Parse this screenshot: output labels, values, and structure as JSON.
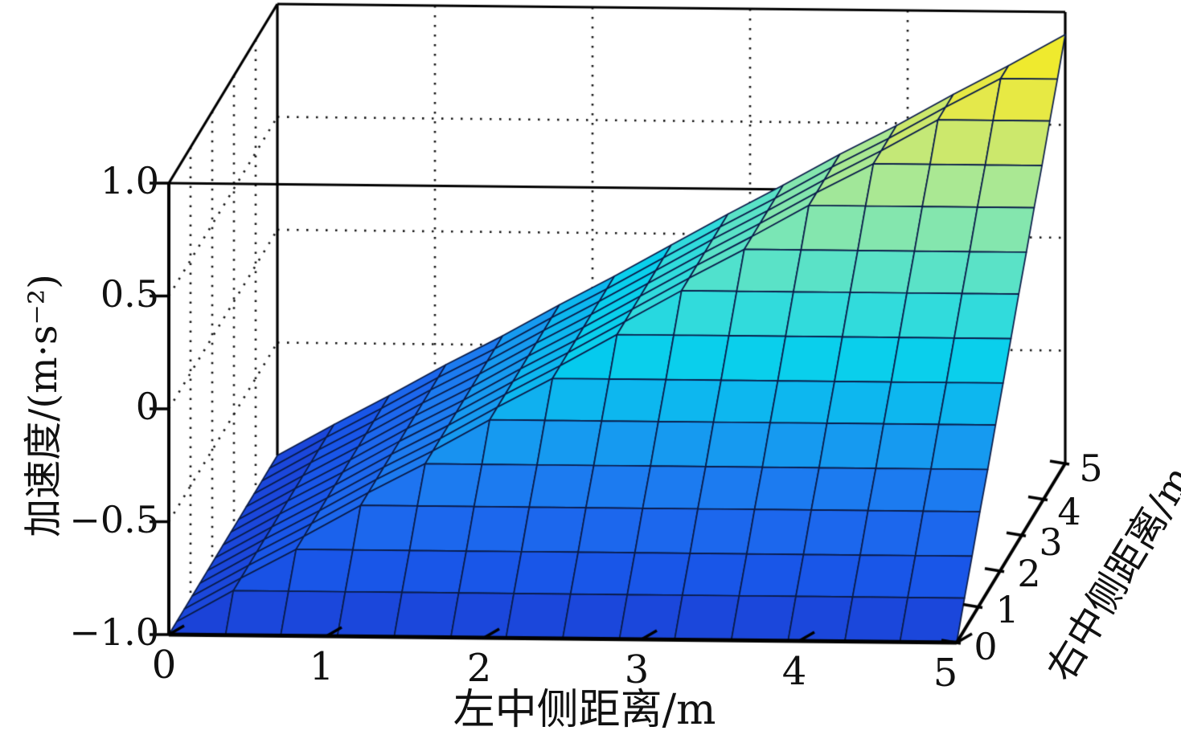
{
  "figure": {
    "background": "#ffffff",
    "description": "3D surface plot of acceleration versus left-middle and right-middle side distances"
  },
  "chart_data": {
    "type": "surface3d",
    "xlabel": "左中侧距离/m",
    "ylabel": "右中侧距离/m",
    "zlabel": "加速度/(m·s⁻²)",
    "xlim": [
      0,
      5
    ],
    "ylim": [
      0,
      5
    ],
    "zlim": [
      -1,
      1
    ],
    "x_ticks": [
      "0",
      "1",
      "2",
      "3",
      "4",
      "5"
    ],
    "y_ticks": [
      "0",
      "1",
      "2",
      "3",
      "4",
      "5"
    ],
    "z_ticks": [
      "1.0",
      "0.5",
      "0",
      "−0.5",
      "−1.0"
    ],
    "x_tick_values": [
      0,
      1,
      2,
      3,
      4,
      5
    ],
    "y_tick_values": [
      0,
      1,
      2,
      3,
      4,
      5
    ],
    "z_tick_values": [
      1.0,
      0.5,
      0,
      -0.5,
      -1.0
    ],
    "grid": true,
    "grid_color": "#161616",
    "box_color": "#000000",
    "mesh_line_color": "#0a1c4a",
    "x_grid": [
      0,
      0.36,
      0.71,
      1.07,
      1.43,
      1.79,
      2.14,
      2.5,
      2.86,
      3.21,
      3.57,
      3.93,
      4.29,
      4.64,
      5
    ],
    "y_grid": [
      0,
      0.36,
      0.71,
      1.07,
      1.43,
      1.79,
      2.14,
      2.5,
      2.86,
      3.21,
      3.57,
      3.93,
      4.29,
      4.64,
      5
    ],
    "z_matrix": [
      [
        -1,
        -1,
        -1,
        -1,
        -1,
        -1,
        -1,
        -1,
        -1,
        -1,
        -1,
        -1,
        -1,
        -1,
        -1
      ],
      [
        -1,
        -0.86,
        -0.86,
        -0.86,
        -0.86,
        -0.86,
        -0.86,
        -0.86,
        -0.86,
        -0.86,
        -0.86,
        -0.86,
        -0.86,
        -0.86,
        -0.86
      ],
      [
        -1,
        -0.86,
        -0.73,
        -0.73,
        -0.73,
        -0.73,
        -0.73,
        -0.73,
        -0.73,
        -0.73,
        -0.73,
        -0.73,
        -0.73,
        -0.73,
        -0.73
      ],
      [
        -1,
        -0.86,
        -0.73,
        -0.59,
        -0.59,
        -0.59,
        -0.59,
        -0.59,
        -0.59,
        -0.59,
        -0.59,
        -0.59,
        -0.59,
        -0.59,
        -0.59
      ],
      [
        -1,
        -0.86,
        -0.73,
        -0.59,
        -0.46,
        -0.46,
        -0.46,
        -0.46,
        -0.46,
        -0.46,
        -0.46,
        -0.46,
        -0.46,
        -0.46,
        -0.46
      ],
      [
        -1,
        -0.86,
        -0.73,
        -0.59,
        -0.46,
        -0.32,
        -0.32,
        -0.32,
        -0.32,
        -0.32,
        -0.32,
        -0.32,
        -0.32,
        -0.32,
        -0.32
      ],
      [
        -1,
        -0.86,
        -0.73,
        -0.59,
        -0.46,
        -0.32,
        -0.19,
        -0.19,
        -0.19,
        -0.19,
        -0.19,
        -0.19,
        -0.19,
        -0.19,
        -0.19
      ],
      [
        -1,
        -0.86,
        -0.73,
        -0.59,
        -0.46,
        -0.32,
        -0.19,
        -0.05,
        -0.05,
        -0.05,
        -0.05,
        -0.05,
        -0.05,
        -0.05,
        -0.05
      ],
      [
        -1,
        -0.86,
        -0.73,
        -0.59,
        -0.46,
        -0.32,
        -0.19,
        -0.05,
        0.09,
        0.09,
        0.09,
        0.09,
        0.09,
        0.09,
        0.09
      ],
      [
        -1,
        -0.86,
        -0.73,
        -0.59,
        -0.46,
        -0.32,
        -0.19,
        -0.05,
        0.09,
        0.22,
        0.22,
        0.22,
        0.22,
        0.22,
        0.22
      ],
      [
        -1,
        -0.86,
        -0.73,
        -0.59,
        -0.46,
        -0.32,
        -0.19,
        -0.05,
        0.09,
        0.22,
        0.36,
        0.36,
        0.36,
        0.36,
        0.36
      ],
      [
        -1,
        -0.86,
        -0.73,
        -0.59,
        -0.46,
        -0.32,
        -0.19,
        -0.05,
        0.09,
        0.22,
        0.36,
        0.49,
        0.49,
        0.49,
        0.49
      ],
      [
        -1,
        -0.86,
        -0.73,
        -0.59,
        -0.46,
        -0.32,
        -0.19,
        -0.05,
        0.09,
        0.22,
        0.36,
        0.49,
        0.63,
        0.63,
        0.63
      ],
      [
        -1,
        -0.86,
        -0.73,
        -0.59,
        -0.46,
        -0.32,
        -0.19,
        -0.05,
        0.09,
        0.22,
        0.36,
        0.49,
        0.63,
        0.76,
        0.76
      ],
      [
        -1,
        -0.86,
        -0.73,
        -0.59,
        -0.46,
        -0.32,
        -0.19,
        -0.05,
        0.09,
        0.22,
        0.36,
        0.49,
        0.63,
        0.76,
        0.9
      ]
    ],
    "colormap": [
      [
        "0.00",
        "#1c3fd4"
      ],
      [
        "0.10",
        "#1955e8"
      ],
      [
        "0.22",
        "#1e73f0"
      ],
      [
        "0.33",
        "#14a6f0"
      ],
      [
        "0.43",
        "#04cdee"
      ],
      [
        "0.53",
        "#3cdfd8"
      ],
      [
        "0.63",
        "#7ce6b4"
      ],
      [
        "0.73",
        "#b4e88c"
      ],
      [
        "0.83",
        "#e4e84c"
      ],
      [
        "1.00",
        "#ffee00"
      ]
    ]
  }
}
